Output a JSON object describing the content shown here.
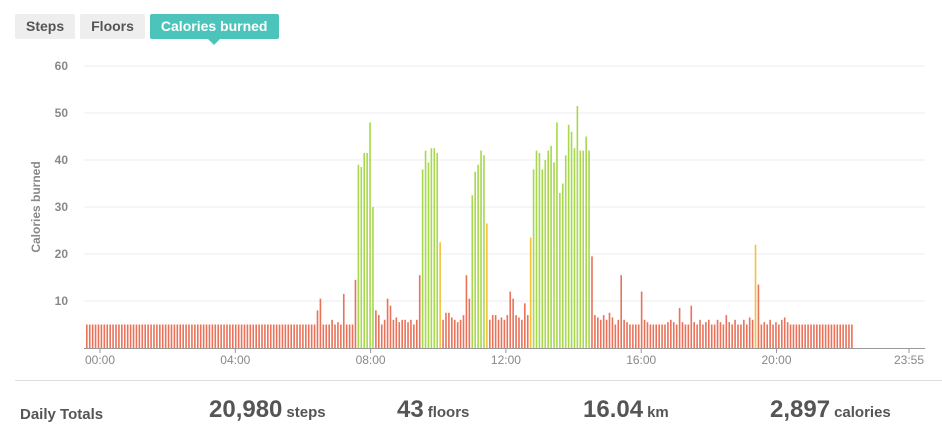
{
  "tabs": [
    {
      "label": "Steps",
      "active": false
    },
    {
      "label": "Floors",
      "active": false
    },
    {
      "label": "Calories burned",
      "active": true
    }
  ],
  "colors": {
    "accent": "#4cc3bb",
    "low": "#e8735a",
    "mid": "#f2c23b",
    "high": "#a8d84e"
  },
  "chart_data": {
    "type": "bar",
    "ylabel": "Calories burned",
    "ylim": [
      0,
      60
    ],
    "yticks": [
      10,
      20,
      30,
      40,
      50,
      60
    ],
    "xticks": [
      "00:00",
      "04:00",
      "08:00",
      "12:00",
      "16:00",
      "20:00",
      "23:55"
    ],
    "interval_minutes": 5,
    "data_points": 263,
    "baseline": 5,
    "grid": true,
    "overrides": [
      [
        79,
        8
      ],
      [
        80,
        10.5
      ],
      [
        84,
        6
      ],
      [
        86,
        5.5
      ],
      [
        88,
        11.5
      ],
      [
        92,
        14.5
      ],
      [
        93,
        39
      ],
      [
        94,
        38.5
      ],
      [
        95,
        41.5
      ],
      [
        96,
        41.5
      ],
      [
        97,
        48
      ],
      [
        98,
        30
      ],
      [
        99,
        8
      ],
      [
        100,
        7
      ],
      [
        102,
        6
      ],
      [
        103,
        10.5
      ],
      [
        104,
        9
      ],
      [
        105,
        6
      ],
      [
        106,
        6.5
      ],
      [
        107,
        5.5
      ],
      [
        108,
        6
      ],
      [
        109,
        6
      ],
      [
        110,
        5.5
      ],
      [
        111,
        6
      ],
      [
        113,
        6
      ],
      [
        114,
        15.5
      ],
      [
        115,
        38
      ],
      [
        116,
        42
      ],
      [
        117,
        39.5
      ],
      [
        118,
        42.5
      ],
      [
        119,
        42.5
      ],
      [
        120,
        41.5
      ],
      [
        121,
        22.5
      ],
      [
        122,
        6
      ],
      [
        123,
        7.5
      ],
      [
        124,
        7.5
      ],
      [
        125,
        6.5
      ],
      [
        126,
        6
      ],
      [
        127,
        5.5
      ],
      [
        128,
        6
      ],
      [
        129,
        7
      ],
      [
        130,
        15.5
      ],
      [
        131,
        10.5
      ],
      [
        132,
        32.5
      ],
      [
        133,
        37.5
      ],
      [
        134,
        39
      ],
      [
        135,
        42
      ],
      [
        136,
        41
      ],
      [
        137,
        26.5
      ],
      [
        138,
        6
      ],
      [
        139,
        7
      ],
      [
        140,
        7
      ],
      [
        141,
        6
      ],
      [
        142,
        6.5
      ],
      [
        143,
        6
      ],
      [
        144,
        7
      ],
      [
        145,
        12
      ],
      [
        146,
        10.5
      ],
      [
        147,
        7
      ],
      [
        148,
        6.5
      ],
      [
        149,
        6
      ],
      [
        150,
        9.5
      ],
      [
        151,
        7
      ],
      [
        152,
        23.5
      ],
      [
        153,
        38
      ],
      [
        154,
        42
      ],
      [
        155,
        41.5
      ],
      [
        156,
        38
      ],
      [
        157,
        40
      ],
      [
        158,
        42
      ],
      [
        159,
        43
      ],
      [
        160,
        39.5
      ],
      [
        161,
        48
      ],
      [
        162,
        33
      ],
      [
        163,
        35
      ],
      [
        164,
        41
      ],
      [
        165,
        47.5
      ],
      [
        166,
        46
      ],
      [
        167,
        42.5
      ],
      [
        168,
        51.5
      ],
      [
        169,
        42
      ],
      [
        170,
        42
      ],
      [
        171,
        45
      ],
      [
        172,
        42
      ],
      [
        173,
        19.5
      ],
      [
        174,
        7
      ],
      [
        175,
        6.5
      ],
      [
        176,
        6
      ],
      [
        177,
        7
      ],
      [
        178,
        6
      ],
      [
        179,
        7.5
      ],
      [
        180,
        6.5
      ],
      [
        182,
        6
      ],
      [
        183,
        15.5
      ],
      [
        184,
        6
      ],
      [
        185,
        5.5
      ],
      [
        190,
        12
      ],
      [
        191,
        6
      ],
      [
        192,
        5.5
      ],
      [
        199,
        5.5
      ],
      [
        200,
        6
      ],
      [
        201,
        5.5
      ],
      [
        203,
        8.5
      ],
      [
        204,
        5.5
      ],
      [
        207,
        9
      ],
      [
        208,
        5.5
      ],
      [
        210,
        6
      ],
      [
        212,
        5.5
      ],
      [
        213,
        6
      ],
      [
        216,
        6
      ],
      [
        217,
        5.5
      ],
      [
        219,
        7
      ],
      [
        220,
        5.5
      ],
      [
        222,
        6
      ],
      [
        225,
        6
      ],
      [
        227,
        6.5
      ],
      [
        228,
        6
      ],
      [
        229,
        22
      ],
      [
        230,
        13.5
      ],
      [
        232,
        5.5
      ],
      [
        234,
        6
      ],
      [
        236,
        5.5
      ],
      [
        238,
        6
      ],
      [
        239,
        6.5
      ],
      [
        240,
        5.5
      ]
    ]
  },
  "totals": {
    "label": "Daily Totals",
    "steps": {
      "value": "20,980",
      "unit": "steps"
    },
    "floors": {
      "value": "43",
      "unit": "floors"
    },
    "distance": {
      "value": "16.04",
      "unit": "km"
    },
    "calories": {
      "value": "2,897",
      "unit": "calories"
    }
  }
}
